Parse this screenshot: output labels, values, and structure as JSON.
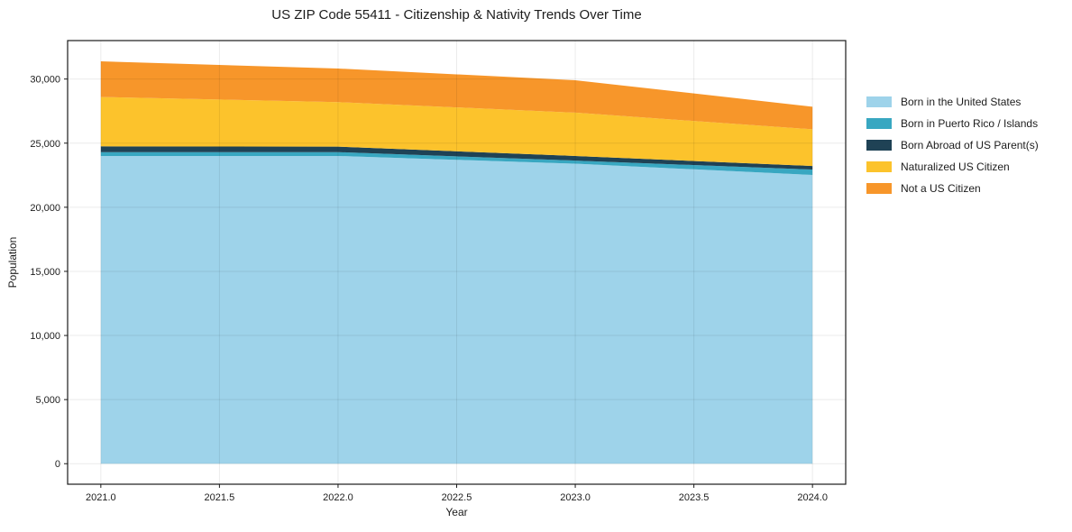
{
  "title": "US ZIP Code 55411 - Citizenship & Nativity Trends Over Time",
  "chart_data": {
    "type": "area",
    "stacked": true,
    "title": "US ZIP Code 55411 - Citizenship & Nativity Trends Over Time",
    "xlabel": "Year",
    "ylabel": "Population",
    "x": [
      2021,
      2022,
      2023,
      2024
    ],
    "series": [
      {
        "name": "Born in the United States",
        "color": "#9ed3ea",
        "values": [
          24000,
          24000,
          23400,
          22520
        ]
      },
      {
        "name": "Born in Puerto Rico / Islands",
        "color": "#38a7c1",
        "values": [
          300,
          300,
          240,
          420
        ]
      },
      {
        "name": "Born Abroad of US Parent(s)",
        "color": "#1f4255",
        "values": [
          450,
          430,
          360,
          280
        ]
      },
      {
        "name": "Naturalized US Citizen",
        "color": "#fcc32c",
        "values": [
          3850,
          3470,
          3380,
          2860
        ]
      },
      {
        "name": "Not a US Citizen",
        "color": "#f7962a",
        "values": [
          2780,
          2620,
          2530,
          1760
        ]
      }
    ],
    "xlim": [
      2020.86,
      2024.14
    ],
    "ylim": [
      -1600,
      33000
    ],
    "xticks": [
      2021.0,
      2021.5,
      2022.0,
      2022.5,
      2023.0,
      2023.5,
      2024.0
    ],
    "xtick_labels": [
      "2021.0",
      "2021.5",
      "2022.0",
      "2022.5",
      "2023.0",
      "2023.5",
      "2024.0"
    ],
    "yticks": [
      0,
      5000,
      10000,
      15000,
      20000,
      25000,
      30000
    ],
    "ytick_labels": [
      "0",
      "5,000",
      "10,000",
      "15,000",
      "20,000",
      "25,000",
      "30,000"
    ],
    "grid": true,
    "grid_color": "#eaeaea",
    "spine_color": "#1a1a1a",
    "legend_position": "right"
  }
}
